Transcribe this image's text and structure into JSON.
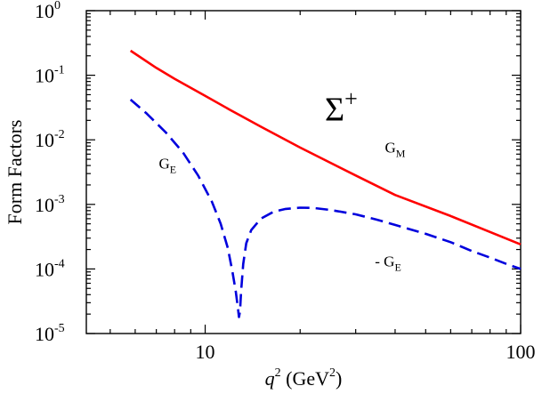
{
  "chart_data": {
    "type": "line",
    "xscale": "log",
    "yscale": "log",
    "xlim": [
      4.2,
      100
    ],
    "ylim": [
      1e-05,
      1
    ],
    "xticks": [
      {
        "value": 10,
        "label": "10"
      },
      {
        "value": 100,
        "label": "100"
      }
    ],
    "yticks": [
      {
        "value": 1,
        "base": "10",
        "exp": "0"
      },
      {
        "value": 0.1,
        "base": "10",
        "exp": "-1"
      },
      {
        "value": 0.01,
        "base": "10",
        "exp": "-2"
      },
      {
        "value": 0.001,
        "base": "10",
        "exp": "-3"
      },
      {
        "value": 0.0001,
        "base": "10",
        "exp": "-4"
      },
      {
        "value": 1e-05,
        "base": "10",
        "exp": "-5"
      }
    ],
    "xlabel": {
      "var": "q",
      "var_sup": "2",
      "unit_open": " (GeV",
      "unit_sup": "2",
      "unit_close": ")"
    },
    "ylabel": "Form Factors",
    "grid": false,
    "series": [
      {
        "key": "GM",
        "color": "#ff0000",
        "dash": "solid",
        "x": [
          5.8,
          7,
          8,
          10,
          12,
          15,
          20,
          30,
          40,
          60,
          100
        ],
        "y": [
          0.24,
          0.13,
          0.088,
          0.048,
          0.029,
          0.016,
          0.0076,
          0.0028,
          0.0014,
          0.00066,
          0.00024
        ]
      },
      {
        "key": "GE",
        "color": "#0000dd",
        "dash": "dashed",
        "x": [
          5.8,
          6.5,
          7.5,
          8.5,
          9.5,
          10.5,
          11.2,
          11.8,
          12.2,
          12.5,
          12.7,
          12.8,
          12.9,
          13.0,
          13.2,
          13.5,
          14,
          15,
          16.5,
          18,
          20,
          22,
          25,
          30,
          35,
          40,
          50,
          60,
          70,
          80,
          90,
          100
        ],
        "y": [
          0.042,
          0.026,
          0.013,
          0.0064,
          0.0028,
          0.0011,
          0.0005,
          0.00021,
          9e-05,
          4.5e-05,
          2.5e-05,
          1.8e-05,
          2.2e-05,
          4.5e-05,
          0.00012,
          0.00025,
          0.0004,
          0.0006,
          0.00077,
          0.00085,
          0.00089,
          0.00088,
          0.00082,
          0.0007,
          0.00058,
          0.00048,
          0.00035,
          0.00026,
          0.00019,
          0.00015,
          0.00012,
          0.0001
        ]
      }
    ],
    "annotations": [
      {
        "key": "sigma",
        "text": "Σ",
        "sup": "+",
        "x": 27,
        "y": 0.02
      },
      {
        "key": "gm",
        "text": "G",
        "sub": "M",
        "x": 40,
        "y": 0.0064
      },
      {
        "key": "ge",
        "text": "G",
        "sub": "E",
        "x": 7.6,
        "y": 0.0036
      },
      {
        "key": "minus-ge",
        "text": "- G",
        "sub": "E",
        "x": 38,
        "y": 0.00011
      }
    ]
  }
}
